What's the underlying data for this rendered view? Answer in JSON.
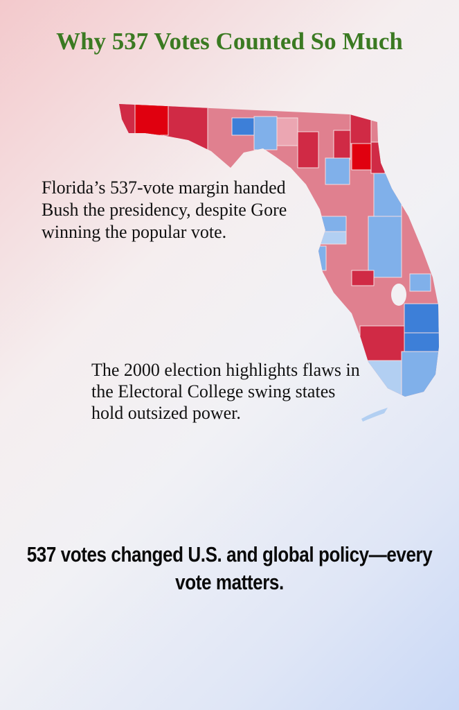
{
  "title": "Why 537 Votes Counted So Much",
  "map": {
    "subject": "Florida county map, 2000 presidential election",
    "colors": {
      "strong_red": "#e0000f",
      "red": "#d02a45",
      "pink": "#e0808f",
      "light_pink": "#eba6b2",
      "blue": "#3d7fd8",
      "light_blue": "#80b0ea",
      "pale_blue": "#b2cff2"
    }
  },
  "paragraph1": "Florida’s 537-vote margin handed Bush the presidency, despite Gore winning the popular vote.",
  "paragraph2": "The 2000 election highlights flaws in the Electoral College swing states hold outsized power.",
  "closing": "537 votes changed U.S. and global policy—every vote matters."
}
